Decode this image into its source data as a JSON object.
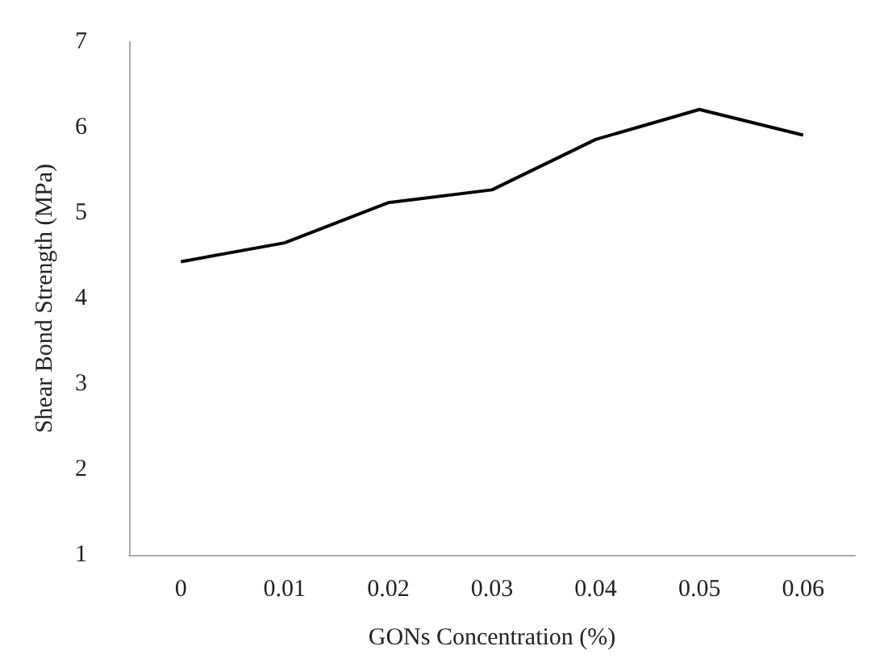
{
  "chart_data": {
    "type": "line",
    "xlabel": "GONs Concentration (%)",
    "ylabel": "Shear Bond Strength (MPa)",
    "categories": [
      "0",
      "0.01",
      "0.02",
      "0.03",
      "0.04",
      "0.05",
      "0.06"
    ],
    "series": [
      {
        "color": "#000000",
        "values": [
          4.43,
          4.65,
          5.12,
          5.27,
          5.86,
          6.21,
          5.91
        ]
      }
    ],
    "ylim": [
      1,
      7
    ],
    "yticks": [
      1,
      2,
      3,
      4,
      5,
      6,
      7
    ],
    "grid": false,
    "marker": "none",
    "line_style": "solid"
  }
}
